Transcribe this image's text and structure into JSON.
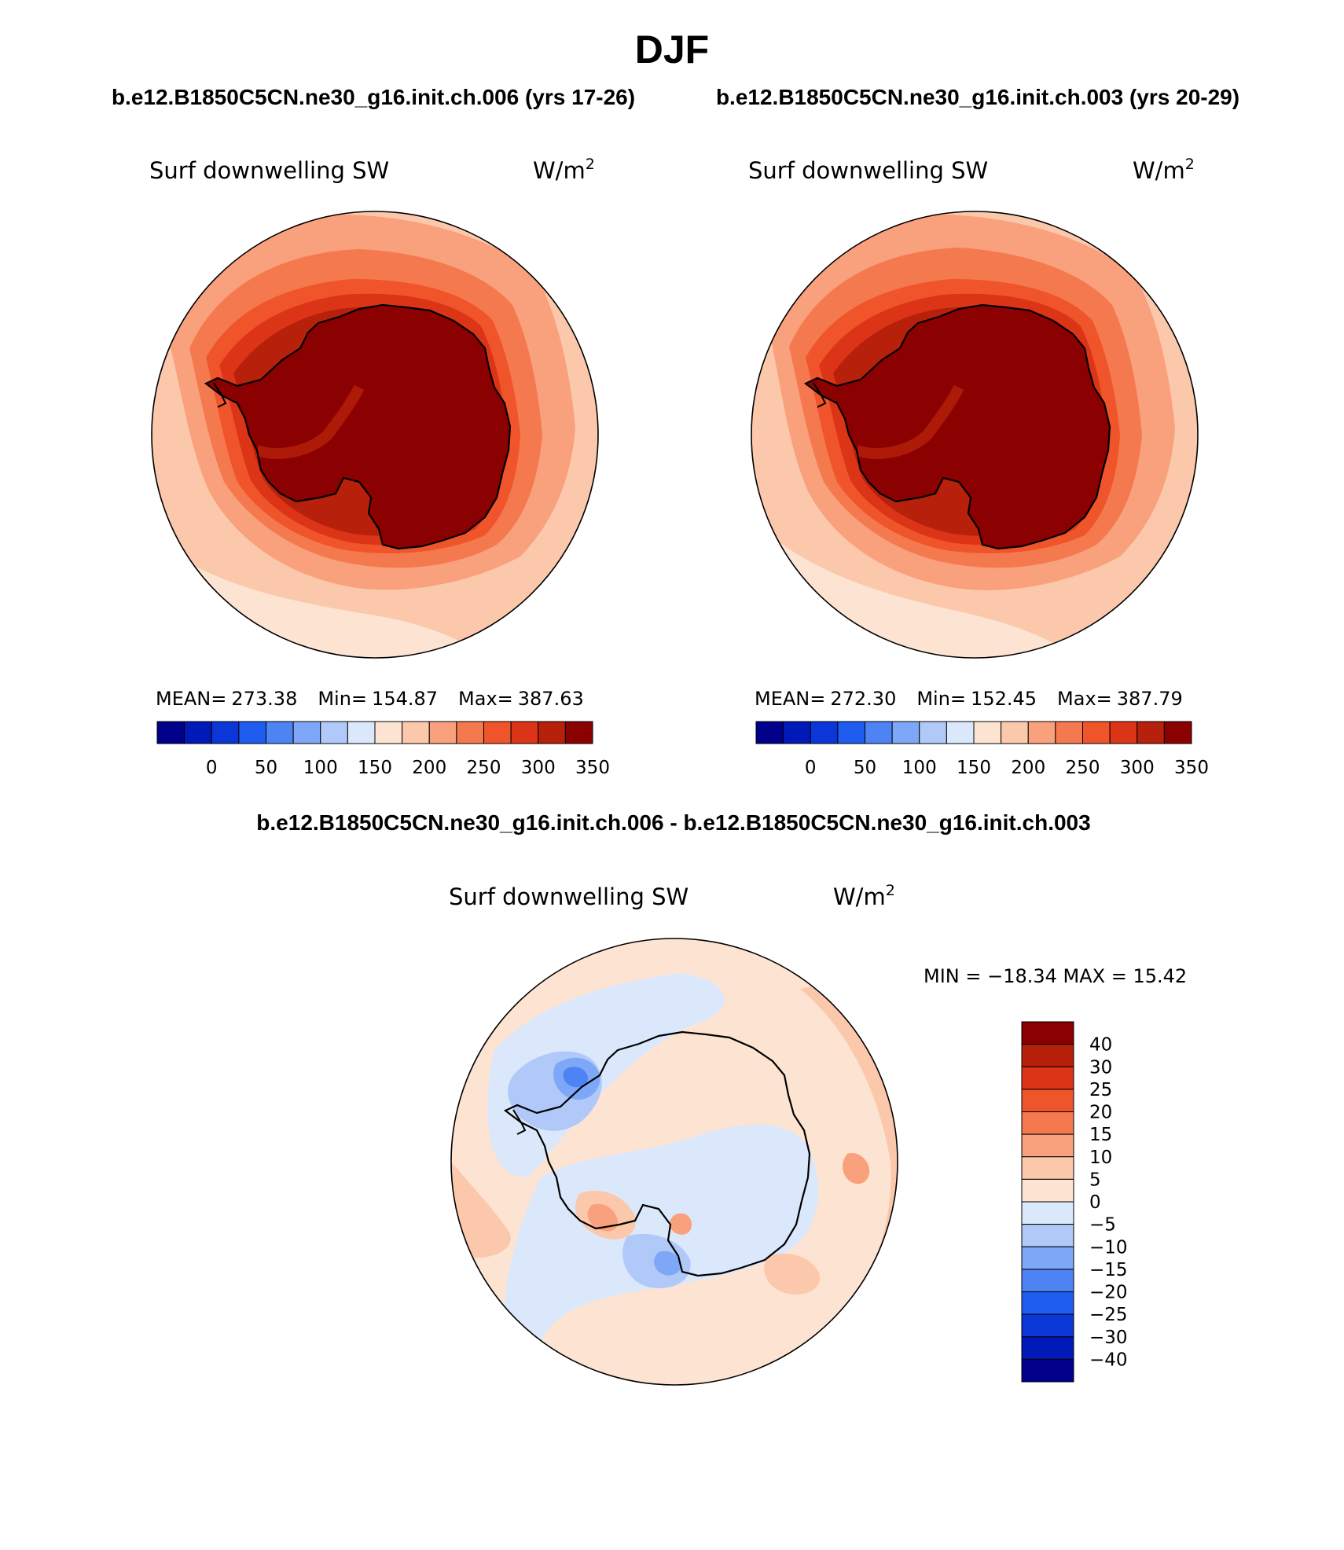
{
  "figure": {
    "title": "DJF",
    "subtitle_left": "b.e12.B1850C5CN.ne30_g16.init.ch.006 (yrs 17-26)",
    "subtitle_right": "b.e12.B1850C5CN.ne30_g16.init.ch.003 (yrs 20-29)",
    "diff_title": "b.e12.B1850C5CN.ne30_g16.init.ch.006 - b.e12.B1850C5CN.ne30_g16.init.ch.003"
  },
  "chart_data": [
    {
      "type": "heatmap",
      "title": "Surf downwelling SW",
      "units_base": "W/m",
      "units_exp": "2",
      "projection": "south-polar-stereographic",
      "stats": {
        "mean_label": "MEAN=",
        "mean": "273.38",
        "min_label": "Min=",
        "min": "154.87",
        "max_label": "Max=",
        "max": "387.63"
      },
      "levels": [
        "0",
        "50",
        "100",
        "150",
        "200",
        "250",
        "300",
        "350"
      ],
      "level_values": [
        0,
        50,
        100,
        150,
        200,
        250,
        300,
        350
      ],
      "colors": [
        "#00008b",
        "#0219b9",
        "#0b36d8",
        "#1f5cf0",
        "#4e83f4",
        "#7ea8f7",
        "#b0c9f9",
        "#dbe8fb",
        "#fde4d2",
        "#fcc8ac",
        "#f9a07c",
        "#f5794e",
        "#ef542b",
        "#dc3417",
        "#b7200a",
        "#8b0000"
      ]
    },
    {
      "type": "heatmap",
      "title": "Surf downwelling SW",
      "units_base": "W/m",
      "units_exp": "2",
      "projection": "south-polar-stereographic",
      "stats": {
        "mean_label": "MEAN=",
        "mean": "272.30",
        "min_label": "Min=",
        "min": "152.45",
        "max_label": "Max=",
        "max": "387.79"
      },
      "levels": [
        "0",
        "50",
        "100",
        "150",
        "200",
        "250",
        "300",
        "350"
      ],
      "level_values": [
        0,
        50,
        100,
        150,
        200,
        250,
        300,
        350
      ],
      "colors": [
        "#00008b",
        "#0219b9",
        "#0b36d8",
        "#1f5cf0",
        "#4e83f4",
        "#7ea8f7",
        "#b0c9f9",
        "#dbe8fb",
        "#fde4d2",
        "#fcc8ac",
        "#f9a07c",
        "#f5794e",
        "#ef542b",
        "#dc3417",
        "#b7200a",
        "#8b0000"
      ]
    },
    {
      "type": "heatmap",
      "title": "Surf downwelling SW",
      "units_base": "W/m",
      "units_exp": "2",
      "projection": "south-polar-stereographic",
      "stats_text": "MIN = −18.34  MAX =   15.42",
      "levels": [
        "40",
        "30",
        "25",
        "20",
        "15",
        "10",
        "5",
        "0",
        "−5",
        "−10",
        "−15",
        "−20",
        "−25",
        "−30",
        "−40"
      ],
      "level_values": [
        40,
        30,
        25,
        20,
        15,
        10,
        5,
        0,
        -5,
        -10,
        -15,
        -20,
        -25,
        -30,
        -40
      ],
      "colors": [
        "#8b0000",
        "#b7200a",
        "#dc3417",
        "#ef542b",
        "#f5794e",
        "#f9a07c",
        "#fcc8ac",
        "#fde4d2",
        "#dbe8fb",
        "#b0c9f9",
        "#7ea8f7",
        "#4e83f4",
        "#1f5cf0",
        "#0b36d8",
        "#0219b9",
        "#00008b"
      ]
    }
  ]
}
